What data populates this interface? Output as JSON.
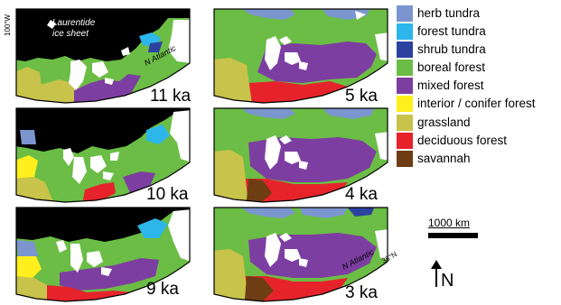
{
  "panels": [
    {
      "id": "11ka",
      "age": "11 ka"
    },
    {
      "id": "5ka",
      "age": "5 ka"
    },
    {
      "id": "10ka",
      "age": "10 ka"
    },
    {
      "id": "4ka",
      "age": "4 ka"
    },
    {
      "id": "9ka",
      "age": "9 ka"
    },
    {
      "id": "3ka",
      "age": "3 ka"
    }
  ],
  "map_labels": {
    "ice_sheet": "Laurentide ice sheet",
    "ice_sheet_line1": "Laurentide",
    "ice_sheet_line2": "ice sheet",
    "ocean_11ka": "N Atlantic",
    "ocean_3ka": "N Atlantic",
    "longitude": "100°W",
    "latitude": "38°N"
  },
  "legend": [
    {
      "label": "herb tundra",
      "color": "#7b96cf"
    },
    {
      "label": "forest tundra",
      "color": "#2cb6ea"
    },
    {
      "label": "shrub tundra",
      "color": "#2c42a0"
    },
    {
      "label": "boreal forest",
      "color": "#6bbd45"
    },
    {
      "label": "mixed forest",
      "color": "#7d3ea1"
    },
    {
      "label": "interior / conifer forest",
      "color": "#ffef1d"
    },
    {
      "label": "grassland",
      "color": "#c8c34a"
    },
    {
      "label": "deciduous forest",
      "color": "#e6232b"
    },
    {
      "label": "savannah",
      "color": "#6e3d14"
    }
  ],
  "scale": {
    "label": "1000 km"
  },
  "north_arrow": {
    "label": "N"
  },
  "colors": {
    "ice": "#000000",
    "lakes": "#ffffff",
    "ocean": "#ffffff",
    "border": "#000000"
  }
}
